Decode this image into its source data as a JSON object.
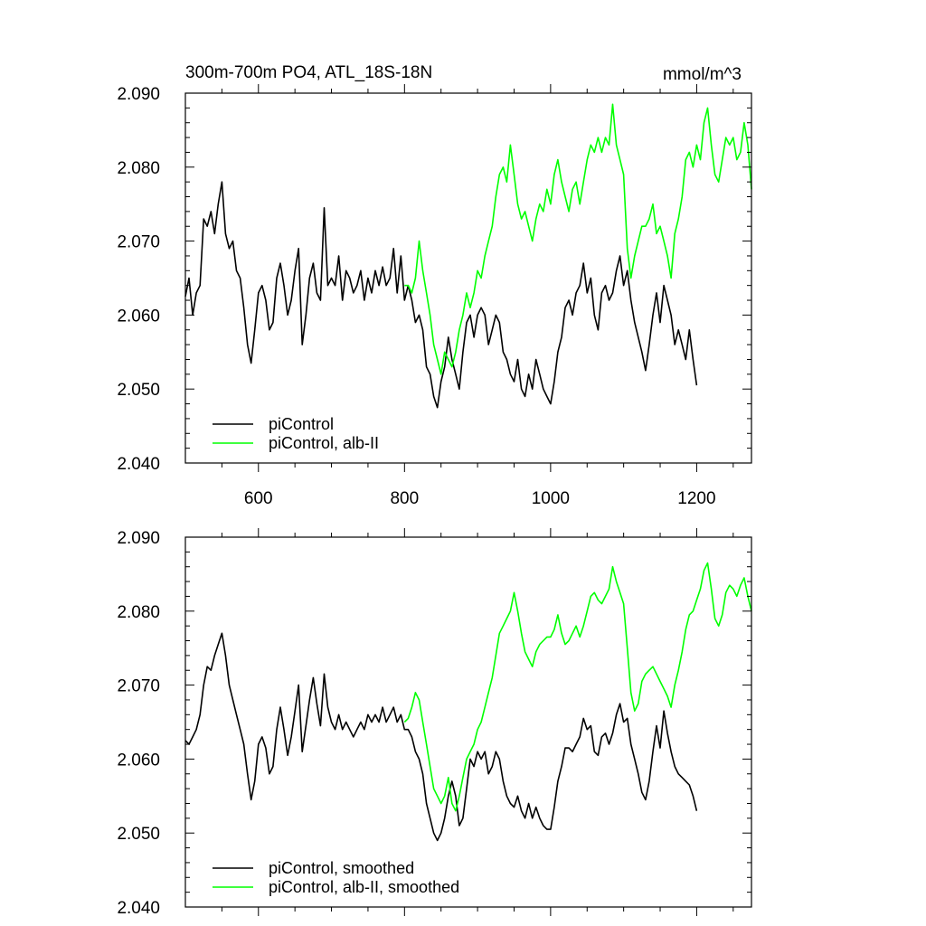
{
  "chart_data": [
    {
      "type": "line",
      "title": "300m-700m PO4, ATL_18S-18N",
      "units": "mmol/m^3",
      "xlim": [
        500,
        1275
      ],
      "ylim": [
        2.04,
        2.09
      ],
      "x_ticks": [
        600,
        800,
        1000,
        1200
      ],
      "x_tick_labels": [
        "600",
        "800",
        "1000",
        "1200"
      ],
      "y_ticks": [
        2.04,
        2.05,
        2.06,
        2.07,
        2.08,
        2.09
      ],
      "y_tick_labels": [
        "2.040",
        "2.050",
        "2.060",
        "2.070",
        "2.080",
        "2.090"
      ],
      "grid": false,
      "legend_position": "bottom-left",
      "series": [
        {
          "name": "piControl",
          "color": "#000000",
          "x": [
            500,
            505,
            510,
            515,
            520,
            525,
            530,
            535,
            540,
            545,
            550,
            555,
            560,
            565,
            570,
            575,
            580,
            585,
            590,
            595,
            600,
            605,
            610,
            615,
            620,
            625,
            630,
            635,
            640,
            645,
            650,
            655,
            660,
            665,
            670,
            675,
            680,
            685,
            690,
            695,
            700,
            705,
            710,
            715,
            720,
            725,
            730,
            735,
            740,
            745,
            750,
            755,
            760,
            765,
            770,
            775,
            780,
            785,
            790,
            795,
            800,
            805,
            810,
            815,
            820,
            825,
            830,
            835,
            840,
            845,
            850,
            855,
            860,
            865,
            870,
            875,
            880,
            885,
            890,
            895,
            900,
            905,
            910,
            915,
            920,
            925,
            930,
            935,
            940,
            945,
            950,
            955,
            960,
            965,
            970,
            975,
            980,
            985,
            990,
            995,
            1000,
            1005,
            1010,
            1015,
            1020,
            1025,
            1030,
            1035,
            1040,
            1045,
            1050,
            1055,
            1060,
            1065,
            1070,
            1075,
            1080,
            1085,
            1090,
            1095,
            1100,
            1105,
            1110,
            1115,
            1120,
            1125,
            1130,
            1135,
            1140,
            1145,
            1150,
            1155,
            1160,
            1165,
            1170,
            1175,
            1180,
            1185,
            1190,
            1195,
            1200
          ],
          "values": [
            2.0625,
            2.065,
            2.06,
            2.063,
            2.064,
            2.073,
            2.072,
            2.074,
            2.071,
            2.075,
            2.078,
            2.071,
            2.069,
            2.07,
            2.066,
            2.065,
            2.061,
            2.056,
            2.0535,
            2.058,
            2.063,
            2.064,
            2.062,
            2.058,
            2.059,
            2.065,
            2.067,
            2.064,
            2.06,
            2.062,
            2.066,
            2.069,
            2.056,
            2.06,
            2.065,
            2.067,
            2.063,
            2.062,
            2.0745,
            2.064,
            2.065,
            2.064,
            2.068,
            2.062,
            2.066,
            2.065,
            2.063,
            2.064,
            2.066,
            2.062,
            2.065,
            2.063,
            2.066,
            2.064,
            2.0665,
            2.064,
            2.065,
            2.069,
            2.063,
            2.068,
            2.062,
            2.064,
            2.062,
            2.059,
            2.06,
            2.058,
            2.053,
            2.052,
            2.049,
            2.0475,
            2.051,
            2.053,
            2.057,
            2.054,
            2.052,
            2.05,
            2.055,
            2.059,
            2.06,
            2.057,
            2.06,
            2.061,
            2.06,
            2.056,
            2.058,
            2.06,
            2.059,
            2.055,
            2.054,
            2.052,
            2.051,
            2.054,
            2.05,
            2.049,
            2.052,
            2.05,
            2.054,
            2.052,
            2.05,
            2.049,
            2.048,
            2.051,
            2.055,
            2.057,
            2.061,
            2.062,
            2.06,
            2.063,
            2.064,
            2.067,
            2.063,
            2.065,
            2.06,
            2.058,
            2.063,
            2.064,
            2.062,
            2.063,
            2.066,
            2.068,
            2.064,
            2.066,
            2.062,
            2.059,
            2.057,
            2.055,
            2.0525,
            2.056,
            2.06,
            2.063,
            2.059,
            2.064,
            2.062,
            2.06,
            2.056,
            2.058,
            2.056,
            2.054,
            2.058,
            2.054,
            2.0505
          ]
        },
        {
          "name": "piControl, alb-II",
          "color": "#00ff00",
          "x": [
            800,
            805,
            810,
            815,
            820,
            825,
            830,
            835,
            840,
            845,
            850,
            855,
            860,
            865,
            870,
            875,
            880,
            885,
            890,
            895,
            900,
            905,
            910,
            915,
            920,
            925,
            930,
            935,
            940,
            945,
            950,
            955,
            960,
            965,
            970,
            975,
            980,
            985,
            990,
            995,
            1000,
            1005,
            1010,
            1015,
            1020,
            1025,
            1030,
            1035,
            1040,
            1045,
            1050,
            1055,
            1060,
            1065,
            1070,
            1075,
            1080,
            1085,
            1090,
            1095,
            1100,
            1105,
            1110,
            1115,
            1120,
            1125,
            1130,
            1135,
            1140,
            1145,
            1150,
            1155,
            1160,
            1165,
            1170,
            1175,
            1180,
            1185,
            1190,
            1195,
            1200,
            1205,
            1210,
            1215,
            1220,
            1225,
            1230,
            1235,
            1240,
            1245,
            1250,
            1255,
            1260,
            1265,
            1270,
            1275
          ],
          "values": [
            2.064,
            2.064,
            2.063,
            2.065,
            2.07,
            2.066,
            2.063,
            2.06,
            2.056,
            2.054,
            2.052,
            2.055,
            2.054,
            2.053,
            2.055,
            2.058,
            2.06,
            2.063,
            2.061,
            2.063,
            2.066,
            2.065,
            2.068,
            2.07,
            2.072,
            2.076,
            2.079,
            2.08,
            2.078,
            2.083,
            2.079,
            2.075,
            2.073,
            2.074,
            2.072,
            2.07,
            2.073,
            2.075,
            2.074,
            2.077,
            2.075,
            2.079,
            2.081,
            2.078,
            2.076,
            2.074,
            2.077,
            2.078,
            2.075,
            2.078,
            2.081,
            2.083,
            2.082,
            2.084,
            2.082,
            2.084,
            2.083,
            2.0885,
            2.083,
            2.081,
            2.079,
            2.069,
            2.065,
            2.068,
            2.07,
            2.072,
            2.072,
            2.073,
            2.075,
            2.071,
            2.072,
            2.07,
            2.068,
            2.065,
            2.071,
            2.073,
            2.076,
            2.081,
            2.082,
            2.08,
            2.083,
            2.081,
            2.086,
            2.088,
            2.083,
            2.079,
            2.078,
            2.081,
            2.084,
            2.083,
            2.084,
            2.081,
            2.082,
            2.086,
            2.083,
            2.077
          ]
        }
      ]
    },
    {
      "type": "line",
      "title": "",
      "xlim": [
        500,
        1275
      ],
      "ylim": [
        2.04,
        2.09
      ],
      "x_ticks": [
        600,
        800,
        1000,
        1200
      ],
      "y_ticks": [
        2.04,
        2.05,
        2.06,
        2.07,
        2.08,
        2.09
      ],
      "y_tick_labels": [
        "2.040",
        "2.050",
        "2.060",
        "2.070",
        "2.080",
        "2.090"
      ],
      "grid": false,
      "legend_position": "bottom-left",
      "series": [
        {
          "name": "piControl, smoothed",
          "color": "#000000",
          "x": [
            500,
            505,
            510,
            515,
            520,
            525,
            530,
            535,
            540,
            545,
            550,
            555,
            560,
            565,
            570,
            575,
            580,
            585,
            590,
            595,
            600,
            605,
            610,
            615,
            620,
            625,
            630,
            635,
            640,
            645,
            650,
            655,
            660,
            665,
            670,
            675,
            680,
            685,
            690,
            695,
            700,
            705,
            710,
            715,
            720,
            725,
            730,
            735,
            740,
            745,
            750,
            755,
            760,
            765,
            770,
            775,
            780,
            785,
            790,
            795,
            800,
            805,
            810,
            815,
            820,
            825,
            830,
            835,
            840,
            845,
            850,
            855,
            860,
            865,
            870,
            875,
            880,
            885,
            890,
            895,
            900,
            905,
            910,
            915,
            920,
            925,
            930,
            935,
            940,
            945,
            950,
            955,
            960,
            965,
            970,
            975,
            980,
            985,
            990,
            995,
            1000,
            1005,
            1010,
            1015,
            1020,
            1025,
            1030,
            1035,
            1040,
            1045,
            1050,
            1055,
            1060,
            1065,
            1070,
            1075,
            1080,
            1085,
            1090,
            1095,
            1100,
            1105,
            1110,
            1115,
            1120,
            1125,
            1130,
            1135,
            1140,
            1145,
            1150,
            1155,
            1160,
            1165,
            1170,
            1175,
            1180,
            1185,
            1190,
            1195,
            1200
          ],
          "values": [
            2.0625,
            2.062,
            2.063,
            2.064,
            2.066,
            2.07,
            2.0725,
            2.072,
            2.074,
            2.0755,
            2.077,
            2.074,
            2.07,
            2.068,
            2.066,
            2.064,
            2.062,
            2.058,
            2.0545,
            2.057,
            2.062,
            2.063,
            2.0615,
            2.058,
            2.059,
            2.064,
            2.067,
            2.064,
            2.0605,
            2.063,
            2.0665,
            2.07,
            2.061,
            2.0645,
            2.068,
            2.071,
            2.0675,
            2.0645,
            2.0715,
            2.067,
            2.065,
            2.064,
            2.066,
            2.064,
            2.065,
            2.064,
            2.063,
            2.064,
            2.065,
            2.064,
            2.066,
            2.065,
            2.066,
            2.065,
            2.067,
            2.065,
            2.066,
            2.067,
            2.065,
            2.066,
            2.064,
            2.064,
            2.063,
            2.061,
            2.06,
            2.058,
            2.054,
            2.052,
            2.05,
            2.049,
            2.05,
            2.052,
            2.055,
            2.057,
            2.055,
            2.051,
            2.052,
            2.056,
            2.06,
            2.059,
            2.061,
            2.06,
            2.061,
            2.058,
            2.059,
            2.061,
            2.06,
            2.057,
            2.055,
            2.054,
            2.0535,
            2.055,
            2.053,
            2.052,
            2.054,
            2.052,
            2.0535,
            2.052,
            2.051,
            2.0505,
            2.0505,
            2.0535,
            2.057,
            2.059,
            2.0615,
            2.0615,
            2.061,
            2.062,
            2.063,
            2.0655,
            2.064,
            2.0645,
            2.061,
            2.0605,
            2.063,
            2.0635,
            2.062,
            2.0635,
            2.066,
            2.0675,
            2.065,
            2.0655,
            2.062,
            2.06,
            2.058,
            2.0555,
            2.0545,
            2.057,
            2.061,
            2.0645,
            2.0615,
            2.0665,
            2.0635,
            2.061,
            2.059,
            2.058,
            2.0575,
            2.057,
            2.0565,
            2.055,
            2.053
          ]
        },
        {
          "name": "piControl, alb-II, smoothed",
          "color": "#00ff00",
          "x": [
            800,
            805,
            810,
            815,
            820,
            825,
            830,
            835,
            840,
            845,
            850,
            855,
            860,
            865,
            870,
            875,
            880,
            885,
            890,
            895,
            900,
            905,
            910,
            915,
            920,
            925,
            930,
            935,
            940,
            945,
            950,
            955,
            960,
            965,
            970,
            975,
            980,
            985,
            990,
            995,
            1000,
            1005,
            1010,
            1015,
            1020,
            1025,
            1030,
            1035,
            1040,
            1045,
            1050,
            1055,
            1060,
            1065,
            1070,
            1075,
            1080,
            1085,
            1090,
            1095,
            1100,
            1105,
            1110,
            1115,
            1120,
            1125,
            1130,
            1135,
            1140,
            1145,
            1150,
            1155,
            1160,
            1165,
            1170,
            1175,
            1180,
            1185,
            1190,
            1195,
            1200,
            1205,
            1210,
            1215,
            1220,
            1225,
            1230,
            1235,
            1240,
            1245,
            1250,
            1255,
            1260,
            1265,
            1270,
            1275
          ],
          "values": [
            2.065,
            2.0655,
            2.067,
            2.069,
            2.068,
            2.065,
            2.062,
            2.059,
            2.056,
            2.055,
            2.054,
            2.055,
            2.0575,
            2.054,
            2.053,
            2.055,
            2.0575,
            2.06,
            2.061,
            2.062,
            2.064,
            2.065,
            2.067,
            2.069,
            2.071,
            2.074,
            2.077,
            2.078,
            2.079,
            2.08,
            2.0825,
            2.08,
            2.077,
            2.0745,
            2.0735,
            2.0725,
            2.0745,
            2.0755,
            2.076,
            2.0765,
            2.0765,
            2.0775,
            2.0795,
            2.077,
            2.0755,
            2.076,
            2.077,
            2.078,
            2.0765,
            2.078,
            2.08,
            2.082,
            2.0825,
            2.0815,
            2.081,
            2.082,
            2.083,
            2.086,
            2.084,
            2.0825,
            2.081,
            2.075,
            2.069,
            2.0665,
            2.0675,
            2.0705,
            2.0715,
            2.072,
            2.0725,
            2.0715,
            2.0705,
            2.0695,
            2.0685,
            2.067,
            2.07,
            2.072,
            2.0745,
            2.0775,
            2.0795,
            2.08,
            2.0815,
            2.083,
            2.0855,
            2.0865,
            2.083,
            2.079,
            2.078,
            2.0795,
            2.0825,
            2.0835,
            2.083,
            2.082,
            2.0835,
            2.0845,
            2.082,
            2.08
          ]
        }
      ]
    }
  ]
}
